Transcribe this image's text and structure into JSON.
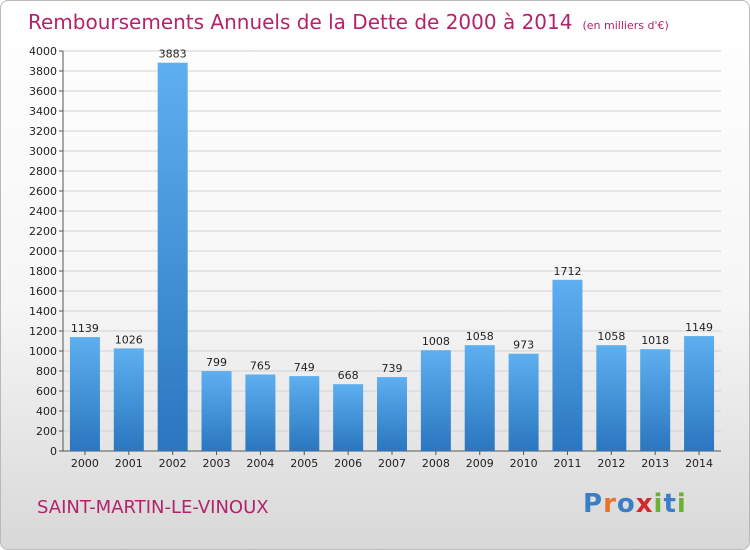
{
  "title": "Remboursements Annuels de la Dette de 2000 à 2014",
  "subtitle": "(en milliers d'€)",
  "commune": "SAINT-MARTIN-LE-VINOUX",
  "logo": {
    "text": "Proxiti",
    "colors": [
      "#3a7ec6",
      "#e8742a",
      "#3a7ec6",
      "#d6262b",
      "#6bb134",
      "#3a7ec6",
      "#6bb134"
    ]
  },
  "colors": {
    "title": "#b3236b",
    "bar_top": "#5eaff0",
    "bar_bottom": "#2a76bf"
  },
  "chart_data": {
    "type": "bar",
    "categories": [
      "2000",
      "2001",
      "2002",
      "2003",
      "2004",
      "2005",
      "2006",
      "2007",
      "2008",
      "2009",
      "2010",
      "2011",
      "2012",
      "2013",
      "2014"
    ],
    "values": [
      1139,
      1026,
      3883,
      799,
      765,
      749,
      668,
      739,
      1008,
      1058,
      973,
      1712,
      1058,
      1018,
      1149
    ],
    "ylim": [
      0,
      4000
    ],
    "yticks": [
      0,
      200,
      400,
      600,
      800,
      1000,
      1200,
      1400,
      1600,
      1800,
      2000,
      2200,
      2400,
      2600,
      2800,
      3000,
      3200,
      3400,
      3600,
      3800,
      4000
    ],
    "grid": true
  }
}
